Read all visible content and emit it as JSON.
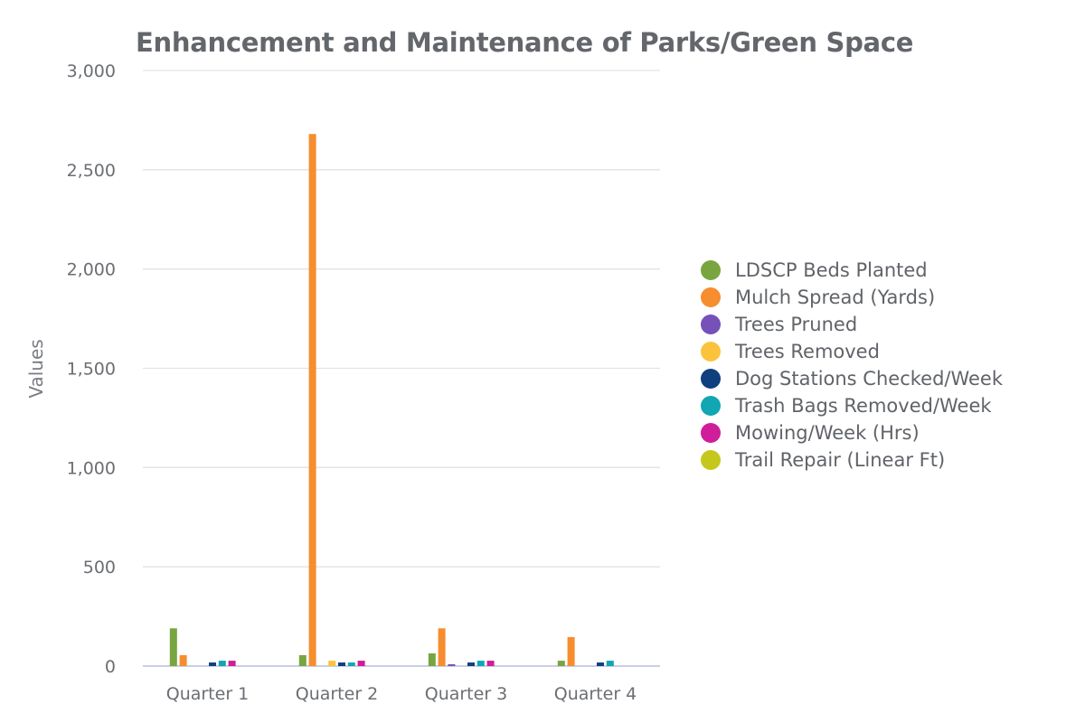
{
  "chart_data": {
    "type": "bar",
    "title": "Enhancement and Maintenance of Parks/Green Space",
    "xlabel": "",
    "ylabel": "Values",
    "ylim": [
      0,
      3000
    ],
    "yticks": [
      "0",
      "500",
      "1,000",
      "1,500",
      "2,000",
      "2,500",
      "3,000"
    ],
    "ytick_values": [
      0,
      500,
      1000,
      1500,
      2000,
      2500,
      3000
    ],
    "grid": true,
    "legend_position": "right",
    "categories": [
      "Quarter 1",
      "Quarter 2",
      "Quarter 3",
      "Quarter 4"
    ],
    "series": [
      {
        "name": "LDSCP Beds Planted",
        "color": "#78a540",
        "values": [
          190,
          55,
          64,
          27
        ]
      },
      {
        "name": "Mulch Spread (Yards)",
        "color": "#f68d2e",
        "values": [
          55,
          2680,
          190,
          146
        ]
      },
      {
        "name": "Trees Pruned",
        "color": "#7551b8",
        "values": [
          0,
          0,
          9,
          0
        ]
      },
      {
        "name": "Trees Removed",
        "color": "#fbc33c",
        "values": [
          0,
          27,
          0,
          0
        ]
      },
      {
        "name": "Dog Stations Checked/Week",
        "color": "#0e3f7e",
        "values": [
          18,
          18,
          18,
          18
        ]
      },
      {
        "name": "Trash Bags Removed/Week",
        "color": "#10a6b3",
        "values": [
          27,
          18,
          27,
          27
        ]
      },
      {
        "name": "Mowing/Week (Hrs)",
        "color": "#d01d9a",
        "values": [
          27,
          27,
          27,
          0
        ]
      },
      {
        "name": "Trail Repair (Linear Ft)",
        "color": "#c5c81c",
        "values": [
          0,
          0,
          0,
          0
        ]
      }
    ]
  }
}
